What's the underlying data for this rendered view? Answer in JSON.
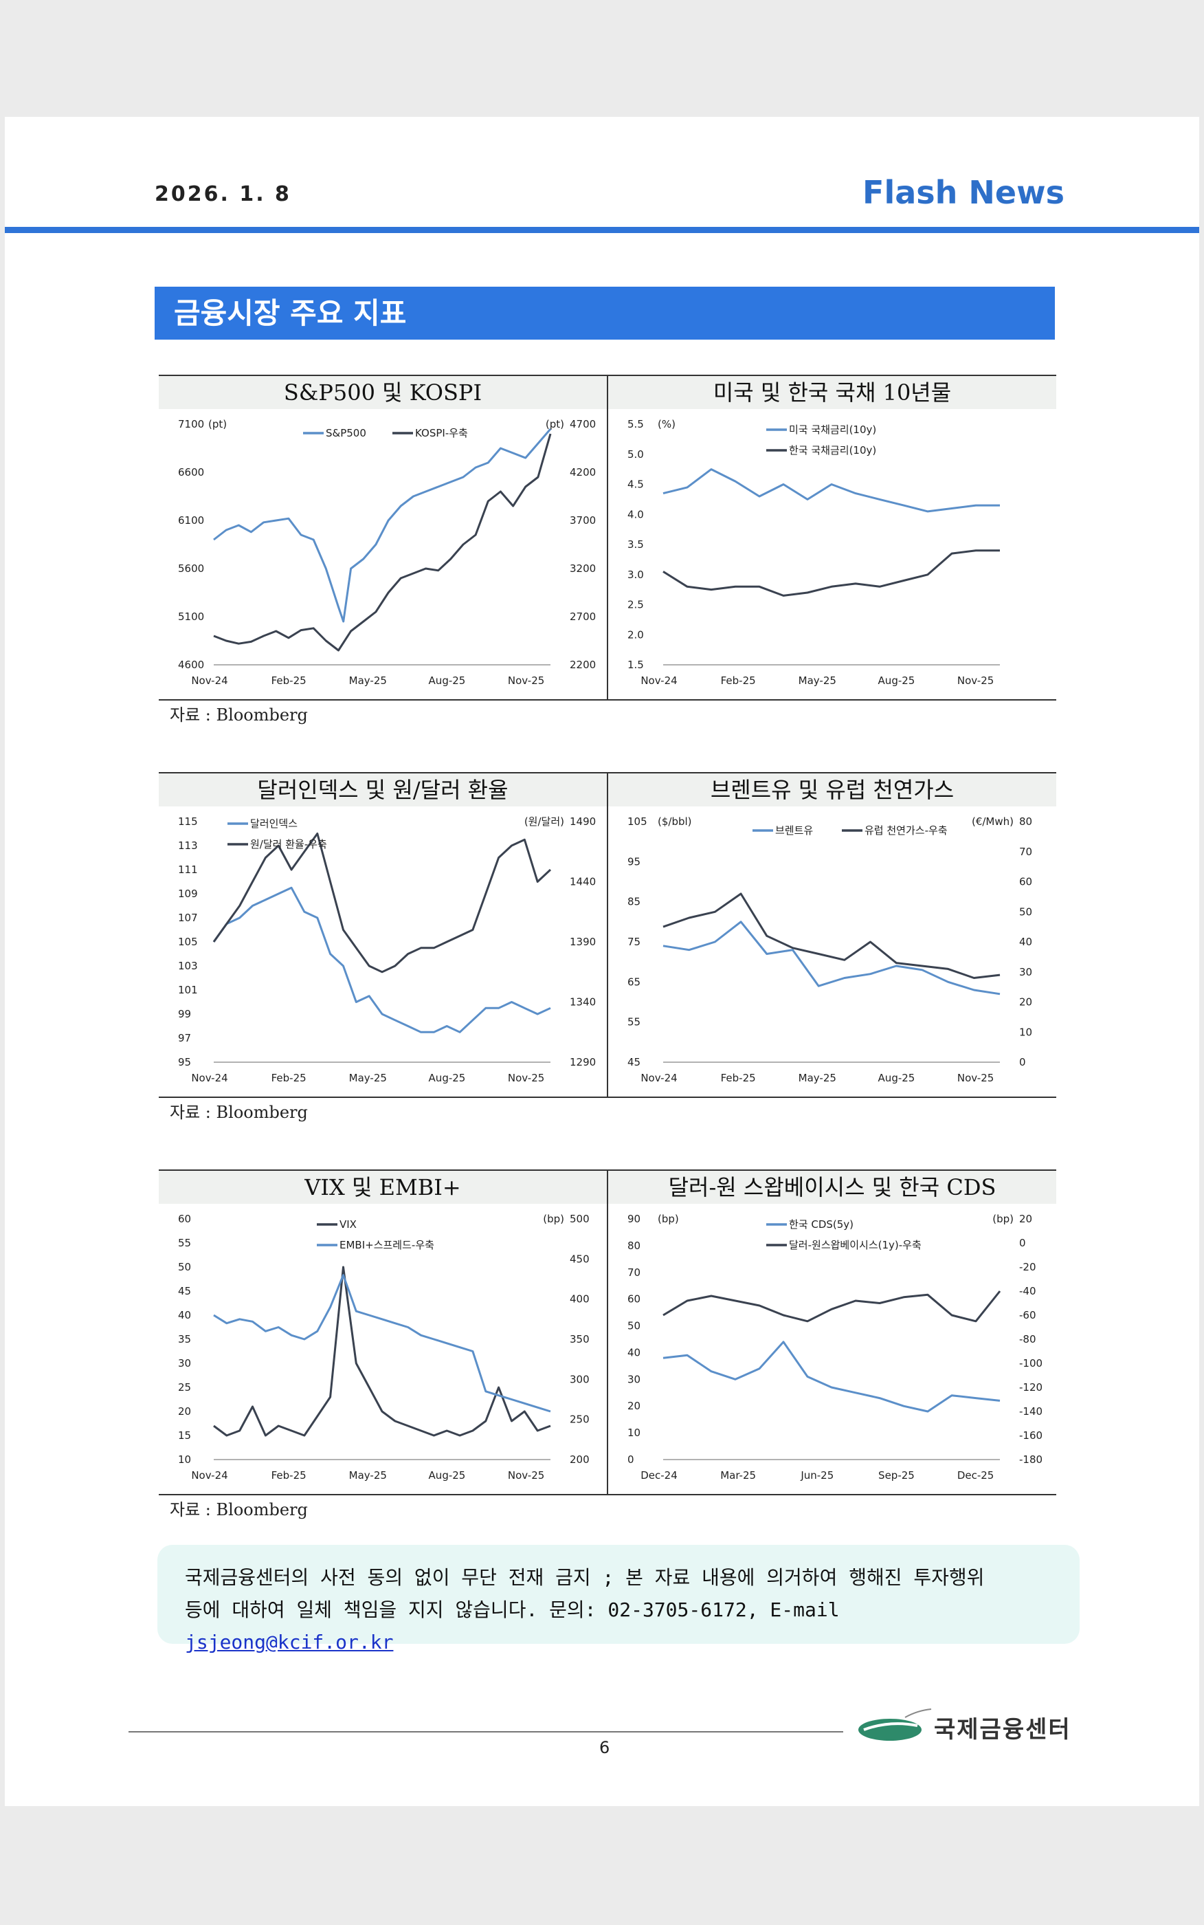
{
  "header": {
    "date": "2026. 1. 8",
    "brand": "Flash News"
  },
  "section_title": "금융시장 주요 지표",
  "source_label": "자료 : Bloomberg",
  "colors": {
    "blue": "#5b8fc9",
    "dark": "#3a4250",
    "accent": "#2e77e0"
  },
  "chart_data": [
    {
      "type": "line",
      "title": "S&P500 및 KOSPI",
      "ylabel_left": "(pt)",
      "ylabel_right": "(pt)",
      "ylim_left": [
        4600,
        7100
      ],
      "ylim_right": [
        2200,
        4700
      ],
      "yticks_left": [
        "7100",
        "6600",
        "6100",
        "5600",
        "5100",
        "4600"
      ],
      "yticks_right": [
        "4700",
        "4200",
        "3700",
        "3200",
        "2700",
        "2200"
      ],
      "xticks": [
        "Nov-24",
        "Feb-25",
        "May-25",
        "Aug-25",
        "Nov-25"
      ],
      "legend": "top-center",
      "series": [
        {
          "name": "S&P500",
          "axis": "left",
          "color": "blue",
          "x": [
            0,
            0.5,
            1,
            1.5,
            2,
            2.5,
            3,
            3.5,
            4,
            4.5,
            5,
            5.2,
            5.5,
            6,
            6.5,
            7,
            7.5,
            8,
            8.5,
            9,
            9.5,
            10,
            10.5,
            11,
            11.5,
            12,
            12.5,
            13,
            13.5
          ],
          "y": [
            5900,
            6000,
            6050,
            5980,
            6080,
            6100,
            6120,
            5950,
            5900,
            5600,
            5200,
            5050,
            5600,
            5700,
            5850,
            6100,
            6250,
            6350,
            6400,
            6450,
            6500,
            6550,
            6650,
            6700,
            6850,
            6800,
            6750,
            6900,
            7050
          ]
        },
        {
          "name": "KOSPI-우축",
          "axis": "right",
          "color": "dark",
          "x": [
            0,
            0.5,
            1,
            1.5,
            2,
            2.5,
            3,
            3.5,
            4,
            4.5,
            5,
            5.5,
            6,
            6.5,
            7,
            7.5,
            8,
            8.5,
            9,
            9.5,
            10,
            10.5,
            11,
            11.5,
            12,
            12.5,
            13,
            13.5
          ],
          "y": [
            2500,
            2450,
            2420,
            2440,
            2500,
            2550,
            2480,
            2560,
            2580,
            2450,
            2350,
            2550,
            2650,
            2750,
            2950,
            3100,
            3150,
            3200,
            3180,
            3300,
            3450,
            3550,
            3900,
            4000,
            3850,
            4050,
            4150,
            4600
          ]
        }
      ]
    },
    {
      "type": "line",
      "title": "미국 및 한국 국채 10년물",
      "ylabel_left": "(%)",
      "ylim_left": [
        1.5,
        5.5
      ],
      "yticks_left": [
        "5.5",
        "5.0",
        "4.5",
        "4.0",
        "3.5",
        "3.0",
        "2.5",
        "2.0",
        "1.5"
      ],
      "xticks": [
        "Nov-24",
        "Feb-25",
        "May-25",
        "Aug-25",
        "Nov-25"
      ],
      "legend": "top-center",
      "series": [
        {
          "name": "미국 국채금리(10y)",
          "axis": "left",
          "color": "blue",
          "x": [
            0,
            1,
            2,
            3,
            4,
            5,
            6,
            7,
            8,
            9,
            10,
            11,
            12,
            13,
            14
          ],
          "y": [
            4.35,
            4.45,
            4.75,
            4.55,
            4.3,
            4.5,
            4.25,
            4.5,
            4.35,
            4.25,
            4.15,
            4.05,
            4.1,
            4.15,
            4.15
          ]
        },
        {
          "name": "한국 국채금리(10y)",
          "axis": "left",
          "color": "dark",
          "x": [
            0,
            1,
            2,
            3,
            4,
            5,
            6,
            7,
            8,
            9,
            10,
            11,
            12,
            13,
            14
          ],
          "y": [
            3.05,
            2.8,
            2.75,
            2.8,
            2.8,
            2.65,
            2.7,
            2.8,
            2.85,
            2.8,
            2.9,
            3.0,
            3.35,
            3.4,
            3.4
          ]
        }
      ]
    },
    {
      "type": "line",
      "title": "달러인덱스 및 원/달러 환율",
      "ylabel_right": "(원/달러)",
      "ylim_left": [
        95,
        115
      ],
      "ylim_right": [
        1290,
        1490
      ],
      "yticks_left": [
        "115",
        "113",
        "111",
        "109",
        "107",
        "105",
        "103",
        "101",
        "99",
        "97",
        "95"
      ],
      "yticks_right": [
        "1490",
        "1440",
        "1390",
        "1340",
        "1290"
      ],
      "xticks": [
        "Nov-24",
        "Feb-25",
        "May-25",
        "Aug-25",
        "Nov-25"
      ],
      "legend": "top-left",
      "series": [
        {
          "name": "달러인덱스",
          "axis": "left",
          "color": "blue",
          "x": [
            0,
            0.5,
            1,
            1.5,
            2,
            2.5,
            3,
            3.5,
            4,
            4.5,
            5,
            5.5,
            6,
            6.5,
            7,
            7.5,
            8,
            8.5,
            9,
            9.5,
            10,
            10.5,
            11,
            11.5,
            12,
            12.5,
            13
          ],
          "y": [
            105,
            106.5,
            107,
            108,
            108.5,
            109,
            109.5,
            107.5,
            107,
            104,
            103,
            100,
            100.5,
            99,
            98.5,
            98,
            97.5,
            97.5,
            98,
            97.5,
            98.5,
            99.5,
            99.5,
            100,
            99.5,
            99,
            99.5
          ]
        },
        {
          "name": "원/달러 환율-우축",
          "axis": "right",
          "color": "dark",
          "x": [
            0,
            0.5,
            1,
            1.5,
            2,
            2.5,
            3,
            3.5,
            4,
            4.5,
            5,
            5.5,
            6,
            6.5,
            7,
            7.5,
            8,
            8.5,
            9,
            9.5,
            10,
            10.5,
            11,
            11.5,
            12,
            12.5,
            13
          ],
          "y": [
            1390,
            1405,
            1420,
            1440,
            1460,
            1470,
            1450,
            1465,
            1480,
            1440,
            1400,
            1385,
            1370,
            1365,
            1370,
            1380,
            1385,
            1385,
            1390,
            1395,
            1400,
            1430,
            1460,
            1470,
            1475,
            1440,
            1450
          ]
        }
      ]
    },
    {
      "type": "line",
      "title": "브렌트유 및 유럽 천연가스",
      "ylabel_left": "($/bbl)",
      "ylabel_right": "(€/Mwh)",
      "ylim_left": [
        45,
        105
      ],
      "ylim_right": [
        0,
        80
      ],
      "yticks_left": [
        "105",
        "95",
        "85",
        "75",
        "65",
        "55",
        "45"
      ],
      "yticks_right": [
        "80",
        "70",
        "60",
        "50",
        "40",
        "30",
        "20",
        "10",
        "0"
      ],
      "xticks": [
        "Nov-24",
        "Feb-25",
        "May-25",
        "Aug-25",
        "Nov-25"
      ],
      "legend": "top-center",
      "series": [
        {
          "name": "브렌트유",
          "axis": "left",
          "color": "blue",
          "x": [
            0,
            1,
            2,
            3,
            4,
            5,
            6,
            7,
            8,
            9,
            10,
            11,
            12,
            13
          ],
          "y": [
            74,
            73,
            75,
            80,
            72,
            73,
            64,
            66,
            67,
            69,
            68,
            65,
            63,
            62
          ]
        },
        {
          "name": "유럽 천연가스-우축",
          "axis": "right",
          "color": "dark",
          "x": [
            0,
            1,
            2,
            3,
            4,
            5,
            6,
            7,
            8,
            9,
            10,
            11,
            12,
            13
          ],
          "y": [
            45,
            48,
            50,
            56,
            42,
            38,
            36,
            34,
            40,
            33,
            32,
            31,
            28,
            29
          ]
        }
      ]
    },
    {
      "type": "line",
      "title": "VIX 및 EMBI+",
      "ylabel_right": "(bp)",
      "ylim_left": [
        10,
        60
      ],
      "ylim_right": [
        200,
        500
      ],
      "yticks_left": [
        "60",
        "55",
        "50",
        "45",
        "40",
        "35",
        "30",
        "25",
        "20",
        "15",
        "10"
      ],
      "yticks_right": [
        "500",
        "450",
        "400",
        "350",
        "300",
        "250",
        "200"
      ],
      "xticks": [
        "Nov-24",
        "Feb-25",
        "May-25",
        "Aug-25",
        "Nov-25"
      ],
      "legend": "top-center",
      "series": [
        {
          "name": "VIX",
          "axis": "left",
          "color": "dark",
          "x": [
            0,
            0.5,
            1,
            1.5,
            2,
            2.5,
            3,
            3.5,
            4,
            4.5,
            5,
            5.5,
            6,
            6.5,
            7,
            7.5,
            8,
            8.5,
            9,
            9.5,
            10,
            10.5,
            11,
            11.5,
            12,
            12.5,
            13
          ],
          "y": [
            17,
            15,
            16,
            21,
            15,
            17,
            16,
            15,
            19,
            23,
            50,
            30,
            25,
            20,
            18,
            17,
            16,
            15,
            16,
            15,
            16,
            18,
            25,
            18,
            20,
            16,
            17
          ]
        },
        {
          "name": "EMBI+스프레드-우축",
          "axis": "right",
          "color": "blue",
          "x": [
            0,
            0.5,
            1,
            1.5,
            2,
            2.5,
            3,
            3.5,
            4,
            4.5,
            5,
            5.5,
            6,
            6.5,
            7,
            7.5,
            8,
            8.5,
            9,
            9.5,
            10,
            10.5,
            11,
            11.5,
            12,
            12.5,
            13
          ],
          "y": [
            380,
            370,
            375,
            372,
            360,
            365,
            355,
            350,
            360,
            390,
            430,
            385,
            380,
            375,
            370,
            365,
            355,
            350,
            345,
            340,
            335,
            285,
            280,
            275,
            270,
            265,
            260
          ]
        }
      ]
    },
    {
      "type": "line",
      "title": "달러-원 스왑베이시스 및 한국 CDS",
      "ylabel_left": "(bp)",
      "ylabel_right": "(bp)",
      "ylim_left": [
        0,
        90
      ],
      "ylim_right": [
        -180,
        20
      ],
      "yticks_left": [
        "90",
        "80",
        "70",
        "60",
        "50",
        "40",
        "30",
        "20",
        "10",
        "0"
      ],
      "yticks_right": [
        "20",
        "0",
        "-20",
        "-40",
        "-60",
        "-80",
        "-100",
        "-120",
        "-140",
        "-160",
        "-180"
      ],
      "xticks": [
        "Dec-24",
        "Mar-25",
        "Jun-25",
        "Sep-25",
        "Dec-25"
      ],
      "legend": "top-center",
      "series": [
        {
          "name": "한국 CDS(5y)",
          "axis": "left",
          "color": "blue",
          "x": [
            0,
            1,
            2,
            3,
            4,
            5,
            6,
            7,
            8,
            9,
            10,
            11,
            12,
            13,
            14
          ],
          "y": [
            38,
            39,
            33,
            30,
            34,
            44,
            31,
            27,
            25,
            23,
            20,
            18,
            24,
            23,
            22
          ]
        },
        {
          "name": "달러-원스왑베이시스(1y)-우축",
          "axis": "right",
          "color": "dark",
          "x": [
            0,
            1,
            2,
            3,
            4,
            5,
            6,
            7,
            8,
            9,
            10,
            11,
            12,
            13,
            14
          ],
          "y": [
            -60,
            -48,
            -44,
            -48,
            -52,
            -60,
            -65,
            -55,
            -48,
            -50,
            -45,
            -43,
            -60,
            -65,
            -40
          ]
        }
      ]
    }
  ],
  "notice": {
    "text1": "국제금융센터의 사전 동의 없이 무단 전재 금지 ; 본 자료 내용에 의거하여 행해진 투자행위",
    "text2": "등에 대하여 일체 책임을 지지 않습니다. 문의: 02-3705-6172, E-mail ",
    "email": "jsjeong@kcif.or.kr"
  },
  "footer": {
    "page": "6",
    "org": "국제금융센터"
  }
}
